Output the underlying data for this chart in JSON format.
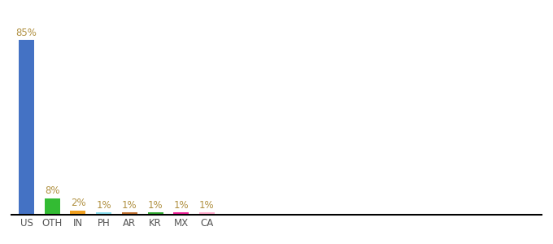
{
  "categories": [
    "US",
    "OTH",
    "IN",
    "PH",
    "AR",
    "KR",
    "MX",
    "CA"
  ],
  "values": [
    85,
    8,
    2,
    1,
    1,
    1,
    1,
    1
  ],
  "bar_colors": [
    "#4472c4",
    "#33bb33",
    "#f0a020",
    "#88ddee",
    "#c07030",
    "#33aa33",
    "#ee2299",
    "#ffaacc"
  ],
  "label_color": "#b09040",
  "background_color": "#ffffff",
  "ylim": [
    0,
    95
  ],
  "bar_width": 0.6,
  "figsize": [
    6.8,
    3.0
  ],
  "dpi": 100
}
